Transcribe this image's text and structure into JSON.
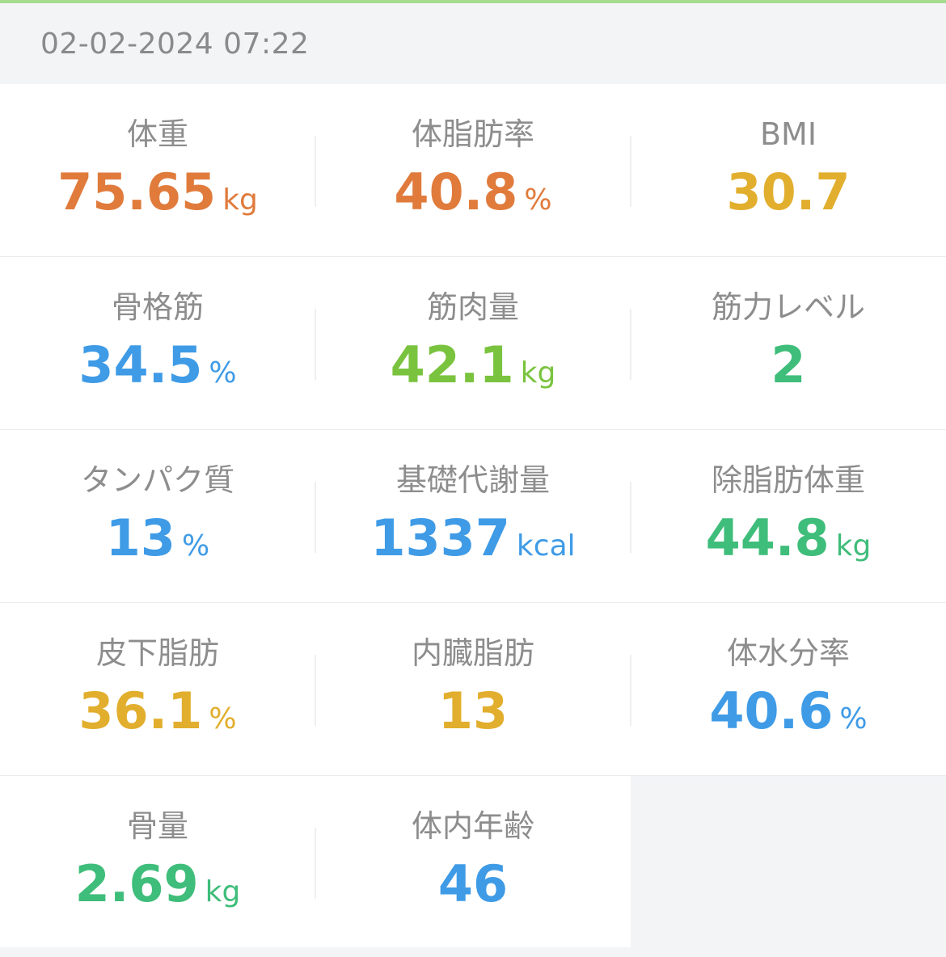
{
  "timestamp": "02-02-2024 07:22",
  "colors": {
    "orange": "#e07b3c",
    "yellow": "#e2ae2d",
    "blue": "#3f9be6",
    "lime": "#7ac33f",
    "green": "#3fbd7a",
    "accent": "#a6dc8f"
  },
  "metrics": [
    {
      "label": "体重",
      "value": "75.65",
      "unit": "kg",
      "color": "orange"
    },
    {
      "label": "体脂肪率",
      "value": "40.8",
      "unit": "%",
      "color": "orange"
    },
    {
      "label": "BMI",
      "value": "30.7",
      "unit": "",
      "color": "yellow"
    },
    {
      "label": "骨格筋",
      "value": "34.5",
      "unit": "%",
      "color": "blue"
    },
    {
      "label": "筋肉量",
      "value": "42.1",
      "unit": "kg",
      "color": "lime"
    },
    {
      "label": "筋力レベル",
      "value": "2",
      "unit": "",
      "color": "green"
    },
    {
      "label": "タンパク質",
      "value": "13",
      "unit": "%",
      "color": "blue"
    },
    {
      "label": "基礎代謝量",
      "value": "1337",
      "unit": "kcal",
      "color": "blue"
    },
    {
      "label": "除脂肪体重",
      "value": "44.8",
      "unit": "kg",
      "color": "green"
    },
    {
      "label": "皮下脂肪",
      "value": "36.1",
      "unit": "%",
      "color": "yellow"
    },
    {
      "label": "内臓脂肪",
      "value": "13",
      "unit": "",
      "color": "yellow"
    },
    {
      "label": "体水分率",
      "value": "40.6",
      "unit": "%",
      "color": "blue"
    },
    {
      "label": "骨量",
      "value": "2.69",
      "unit": "kg",
      "color": "green"
    },
    {
      "label": "体内年齢",
      "value": "46",
      "unit": "",
      "color": "blue"
    }
  ]
}
